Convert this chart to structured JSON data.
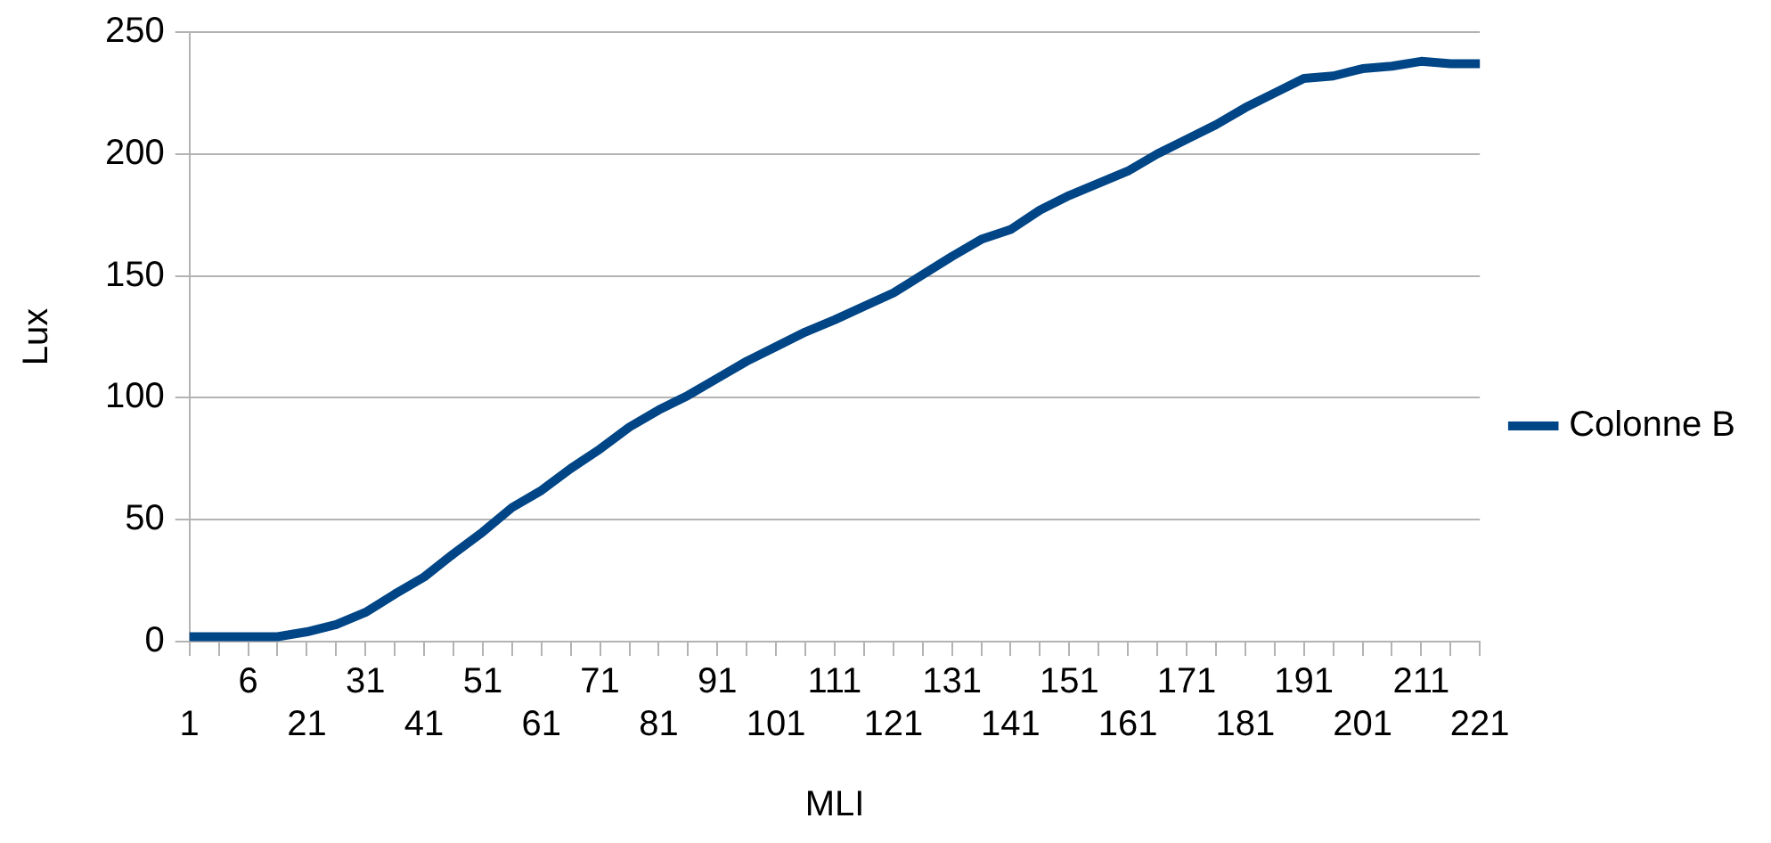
{
  "chart_data": {
    "type": "line",
    "xlabel": "MLI",
    "ylabel": "Lux",
    "categories": [
      "1",
      null,
      "6",
      null,
      "21",
      null,
      "31",
      null,
      "41",
      null,
      "51",
      null,
      "61",
      null,
      "71",
      null,
      "81",
      null,
      "91",
      null,
      "101",
      null,
      "111",
      null,
      "121",
      null,
      "131",
      null,
      "141",
      null,
      "151",
      null,
      "161",
      null,
      "171",
      null,
      "181",
      null,
      "191",
      null,
      "201",
      null,
      "211",
      null,
      "221"
    ],
    "series": [
      {
        "name": "Colonne B",
        "color": "#004586",
        "values": [
          2,
          2,
          2,
          2,
          4,
          7,
          12,
          19.5,
          26.5,
          36,
          45,
          55,
          62,
          71,
          79,
          88,
          95,
          101,
          108,
          115,
          121,
          127,
          132,
          137.5,
          143,
          150.5,
          158,
          165,
          169,
          177,
          183,
          188,
          193,
          200,
          206,
          212,
          219,
          225,
          231,
          232,
          235,
          236,
          238,
          237,
          237
        ]
      }
    ],
    "ylim": [
      0,
      250
    ],
    "yticks": [
      0,
      50,
      100,
      150,
      200,
      250
    ],
    "grid": "y",
    "legend": "right",
    "marker": "none",
    "line_style": "solid"
  }
}
